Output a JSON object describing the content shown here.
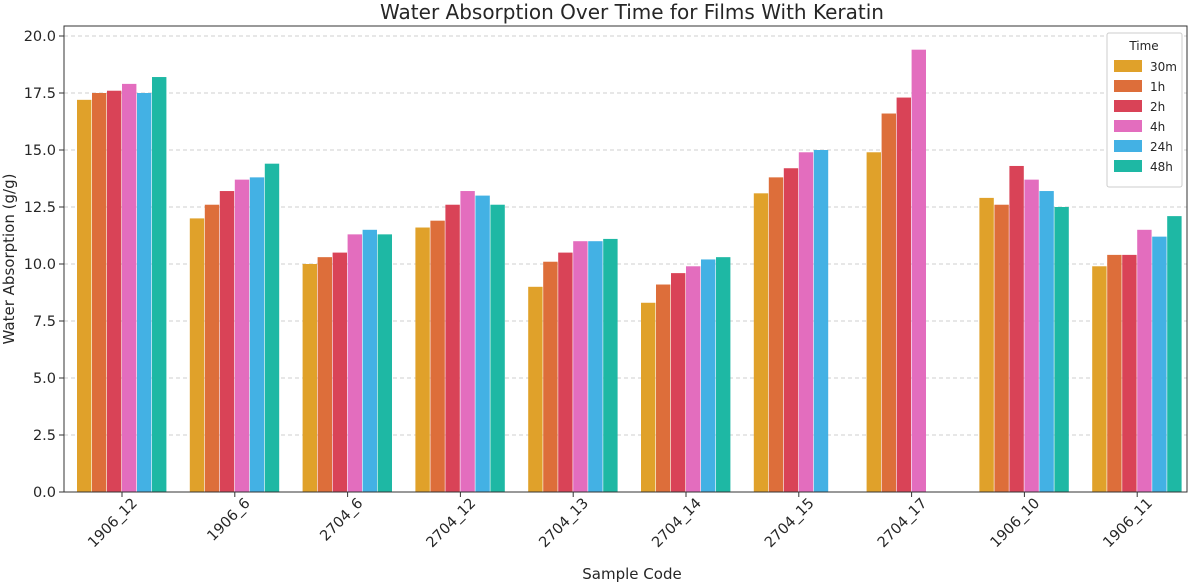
{
  "chart_data": {
    "type": "bar",
    "title": "Water Absorption Over Time for Films With Keratin",
    "xlabel": "Sample Code",
    "ylabel": "Water Absorption (g/g)",
    "ylim": [
      0,
      20
    ],
    "yticks": [
      "0.0",
      "2.5",
      "5.0",
      "7.5",
      "10.0",
      "12.5",
      "15.0",
      "17.5",
      "20.0"
    ],
    "grid": "horizontal dashed",
    "legend": {
      "title": "Time",
      "placement": "top-right"
    },
    "categories": [
      "1906_12",
      "1906_6",
      "2704_6",
      "2704_12",
      "2704_13",
      "2704_14",
      "2704_15",
      "2704_17",
      "1906_10",
      "1906_11"
    ],
    "series": [
      {
        "name": "30m",
        "color": "#E0A12A",
        "values": [
          17.2,
          12.0,
          10.0,
          11.6,
          9.0,
          8.3,
          13.1,
          14.9,
          12.9,
          9.9
        ]
      },
      {
        "name": "1h",
        "color": "#DD6E3A",
        "values": [
          17.5,
          12.6,
          10.3,
          11.9,
          10.1,
          9.1,
          13.8,
          16.6,
          12.6,
          10.4
        ]
      },
      {
        "name": "2h",
        "color": "#D94357",
        "values": [
          17.6,
          13.2,
          10.5,
          12.6,
          10.5,
          9.6,
          14.2,
          17.3,
          14.3,
          10.4
        ]
      },
      {
        "name": "4h",
        "color": "#E36DBE",
        "values": [
          17.9,
          13.7,
          11.3,
          13.2,
          11.0,
          9.9,
          14.9,
          19.4,
          13.7,
          11.5
        ]
      },
      {
        "name": "24h",
        "color": "#43B1E4",
        "values": [
          17.5,
          13.8,
          11.5,
          13.0,
          11.0,
          10.2,
          15.0,
          null,
          13.2,
          11.2
        ]
      },
      {
        "name": "48h",
        "color": "#1EB8A4",
        "values": [
          18.2,
          14.4,
          11.3,
          12.6,
          11.1,
          10.3,
          null,
          null,
          12.5,
          12.1
        ]
      }
    ]
  }
}
